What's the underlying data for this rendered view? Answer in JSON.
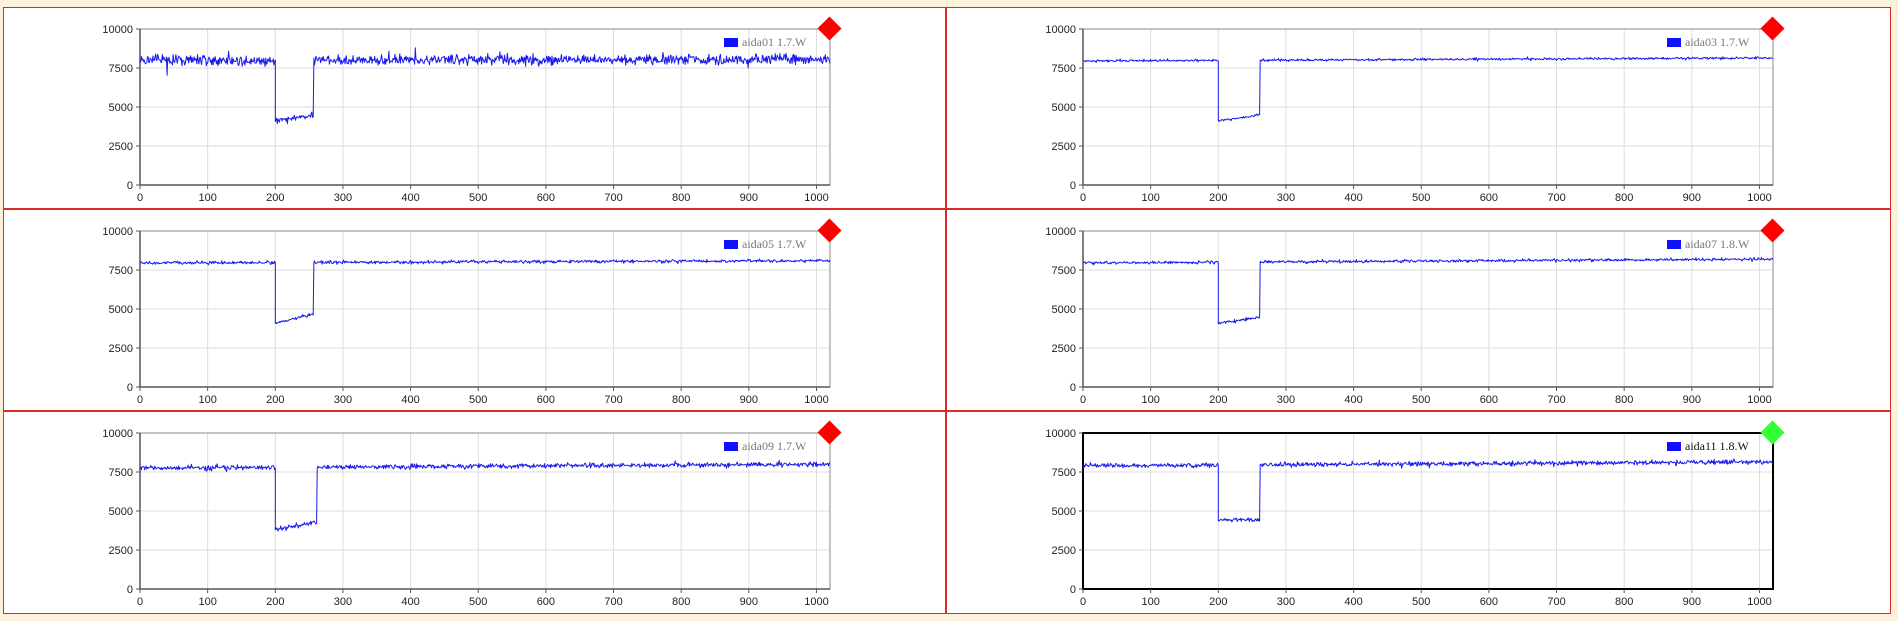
{
  "colors": {
    "line": "#1a1aee",
    "legend_swatch": "#1010ff",
    "panel_border": "#d92b2b",
    "page_background": "#fdf1dc",
    "grid": "#dddddd",
    "status_alarm": "#ff0000",
    "status_ok": "#33ff33"
  },
  "chart_data": [
    {
      "type": "line",
      "series": [
        {
          "name": "aida01 1.7.W"
        }
      ],
      "legend": "top-right",
      "status": "alarm",
      "status_icon": "red-diamond-icon",
      "framed": false,
      "noise": 340,
      "shape": {
        "baseline": 8000,
        "baseline_end": 8050,
        "dip_start": 200,
        "dip_end": 257,
        "dip_from": 4100,
        "dip_to": 4500
      },
      "xlim": [
        0,
        1020
      ],
      "ylim": [
        0,
        10000
      ],
      "xticks": [
        0,
        100,
        200,
        300,
        400,
        500,
        600,
        700,
        800,
        900,
        1000
      ],
      "yticks": [
        0,
        2500,
        5000,
        7500,
        10000
      ],
      "grid": true
    },
    {
      "type": "line",
      "series": [
        {
          "name": "aida03 1.7.W"
        }
      ],
      "legend": "top-right",
      "status": "alarm",
      "status_icon": "red-diamond-icon",
      "framed": false,
      "noise": 70,
      "shape": {
        "baseline": 7950,
        "baseline_end": 8150,
        "dip_start": 200,
        "dip_end": 262,
        "dip_from": 4100,
        "dip_to": 4500
      },
      "xlim": [
        0,
        1020
      ],
      "ylim": [
        0,
        10000
      ],
      "xticks": [
        0,
        100,
        200,
        300,
        400,
        500,
        600,
        700,
        800,
        900,
        1000
      ],
      "yticks": [
        0,
        2500,
        5000,
        7500,
        10000
      ],
      "grid": true
    },
    {
      "type": "line",
      "series": [
        {
          "name": "aida05 1.7.W"
        }
      ],
      "legend": "top-right",
      "status": "alarm",
      "status_icon": "red-diamond-icon",
      "framed": false,
      "noise": 100,
      "shape": {
        "baseline": 7950,
        "baseline_end": 8100,
        "dip_start": 200,
        "dip_end": 257,
        "dip_from": 4100,
        "dip_to": 4700
      },
      "xlim": [
        0,
        1020
      ],
      "ylim": [
        0,
        10000
      ],
      "xticks": [
        0,
        100,
        200,
        300,
        400,
        500,
        600,
        700,
        800,
        900,
        1000
      ],
      "yticks": [
        0,
        2500,
        5000,
        7500,
        10000
      ],
      "grid": true
    },
    {
      "type": "line",
      "series": [
        {
          "name": "aida07 1.8.W"
        }
      ],
      "legend": "top-right",
      "status": "alarm",
      "status_icon": "red-diamond-icon",
      "framed": false,
      "noise": 90,
      "shape": {
        "baseline": 7950,
        "baseline_end": 8200,
        "dip_start": 200,
        "dip_end": 262,
        "dip_from": 4100,
        "dip_to": 4450
      },
      "xlim": [
        0,
        1020
      ],
      "ylim": [
        0,
        10000
      ],
      "xticks": [
        0,
        100,
        200,
        300,
        400,
        500,
        600,
        700,
        800,
        900,
        1000
      ],
      "yticks": [
        0,
        2500,
        5000,
        7500,
        10000
      ],
      "grid": true
    },
    {
      "type": "line",
      "series": [
        {
          "name": "aida09 1.7.W"
        }
      ],
      "legend": "top-right",
      "status": "alarm",
      "status_icon": "red-diamond-icon",
      "framed": false,
      "noise": 150,
      "shape": {
        "baseline": 7750,
        "baseline_end": 8000,
        "dip_start": 200,
        "dip_end": 262,
        "dip_from": 3800,
        "dip_to": 4300
      },
      "xlim": [
        0,
        1020
      ],
      "ylim": [
        0,
        10000
      ],
      "xticks": [
        0,
        100,
        200,
        300,
        400,
        500,
        600,
        700,
        800,
        900,
        1000
      ],
      "yticks": [
        0,
        2500,
        5000,
        7500,
        10000
      ],
      "grid": true
    },
    {
      "type": "line",
      "series": [
        {
          "name": "aida11 1.8.W"
        }
      ],
      "legend": "top-right",
      "status": "ok",
      "status_icon": "green-diamond-icon",
      "framed": true,
      "noise": 140,
      "shape": {
        "baseline": 7900,
        "baseline_end": 8150,
        "dip_start": 200,
        "dip_end": 262,
        "dip_from": 4450,
        "dip_to": 4400
      },
      "xlim": [
        0,
        1020
      ],
      "ylim": [
        0,
        10000
      ],
      "xticks": [
        0,
        100,
        200,
        300,
        400,
        500,
        600,
        700,
        800,
        900,
        1000
      ],
      "yticks": [
        0,
        2500,
        5000,
        7500,
        10000
      ],
      "grid": true
    }
  ]
}
